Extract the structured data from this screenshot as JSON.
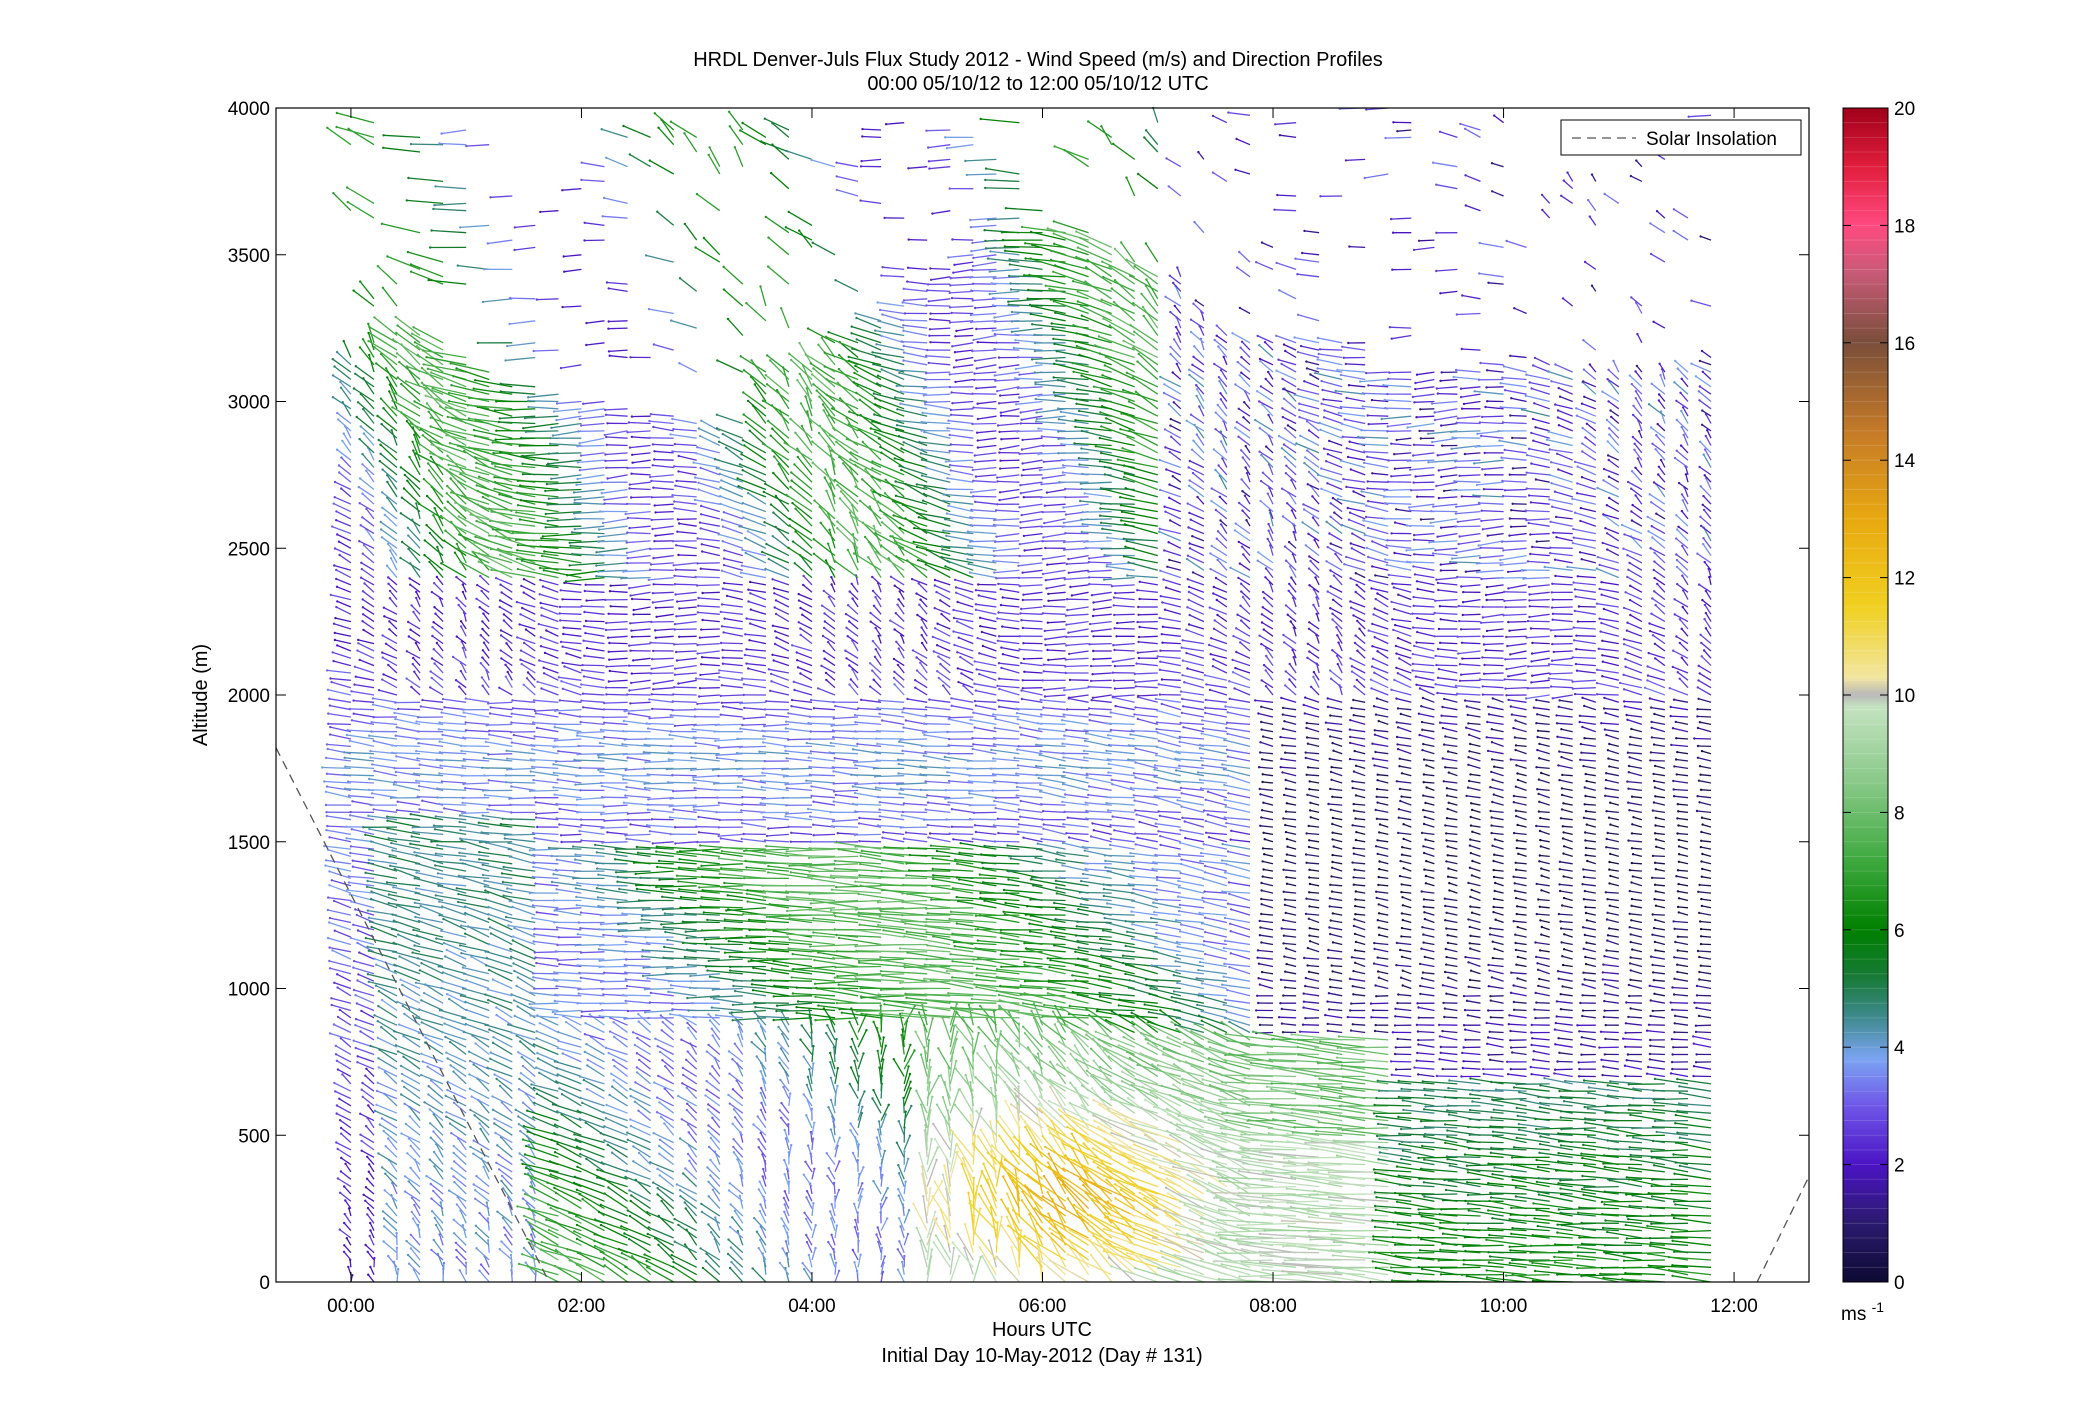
{
  "chart_data": {
    "type": "quiver",
    "title_line1": "HRDL Denver-Juls Flux Study 2012 - Wind Speed (m/s) and Direction Profiles",
    "title_line2": "00:00 05/10/12 to 12:00 05/10/12  UTC",
    "xlabel": "Hours UTC",
    "xlabel_sub": "Initial Day 10-May-2012 (Day # 131)",
    "ylabel": "Altitude (m)",
    "xlim_hours": [
      -0.65,
      12.65
    ],
    "ylim": [
      0,
      4000
    ],
    "x_ticks": [
      {
        "value": 0,
        "label": "00:00"
      },
      {
        "value": 2,
        "label": "02:00"
      },
      {
        "value": 4,
        "label": "04:00"
      },
      {
        "value": 6,
        "label": "06:00"
      },
      {
        "value": 8,
        "label": "08:00"
      },
      {
        "value": 10,
        "label": "10:00"
      },
      {
        "value": 12,
        "label": "12:00"
      }
    ],
    "y_ticks": [
      0,
      500,
      1000,
      1500,
      2000,
      2500,
      3000,
      3500,
      4000
    ],
    "legend": {
      "label": "Solar Insolation",
      "placement": "top-right",
      "style": "dashed",
      "color": "#555555"
    },
    "solar_insolation": [
      {
        "x": -0.65,
        "y": 1820
      },
      {
        "x": 1.72,
        "y": 0
      },
      {
        "x": 12.2,
        "y": 0
      },
      {
        "x": 12.65,
        "y": 360
      }
    ],
    "colorbar": {
      "min": 0,
      "max": 20,
      "ticks": [
        0,
        2,
        4,
        6,
        8,
        10,
        12,
        14,
        16,
        18,
        20
      ],
      "unit_label": "ms",
      "unit_exponent": "-1",
      "stops": [
        {
          "v": 0,
          "c": "#0d0a33"
        },
        {
          "v": 1,
          "c": "#2b1a6e"
        },
        {
          "v": 2,
          "c": "#4b14c4"
        },
        {
          "v": 3,
          "c": "#6f56e8"
        },
        {
          "v": 3.8,
          "c": "#7ba4f2"
        },
        {
          "v": 4.5,
          "c": "#3f8a8f"
        },
        {
          "v": 5.2,
          "c": "#167a36"
        },
        {
          "v": 6,
          "c": "#008000"
        },
        {
          "v": 7.2,
          "c": "#3faa3f"
        },
        {
          "v": 8.5,
          "c": "#88c888"
        },
        {
          "v": 9.8,
          "c": "#c4e3c0"
        },
        {
          "v": 10,
          "c": "#b8b8b8"
        },
        {
          "v": 10.3,
          "c": "#f2e6a0"
        },
        {
          "v": 11.5,
          "c": "#f0d020"
        },
        {
          "v": 13,
          "c": "#e8a810"
        },
        {
          "v": 14.5,
          "c": "#c47a28"
        },
        {
          "v": 16,
          "c": "#7a4e3a"
        },
        {
          "v": 17.2,
          "c": "#c85a78"
        },
        {
          "v": 18,
          "c": "#ff4a80"
        },
        {
          "v": 19,
          "c": "#e01e3c"
        },
        {
          "v": 20,
          "c": "#a0001a"
        }
      ]
    },
    "profiles": {
      "start_hour": 0.0,
      "end_hour": 11.8,
      "interval_hours": 0.2,
      "altitude_step_m": 25,
      "description": "One vertical profile of wind barbs every ~12 minutes from the surface up to the lidar return top"
    }
  }
}
